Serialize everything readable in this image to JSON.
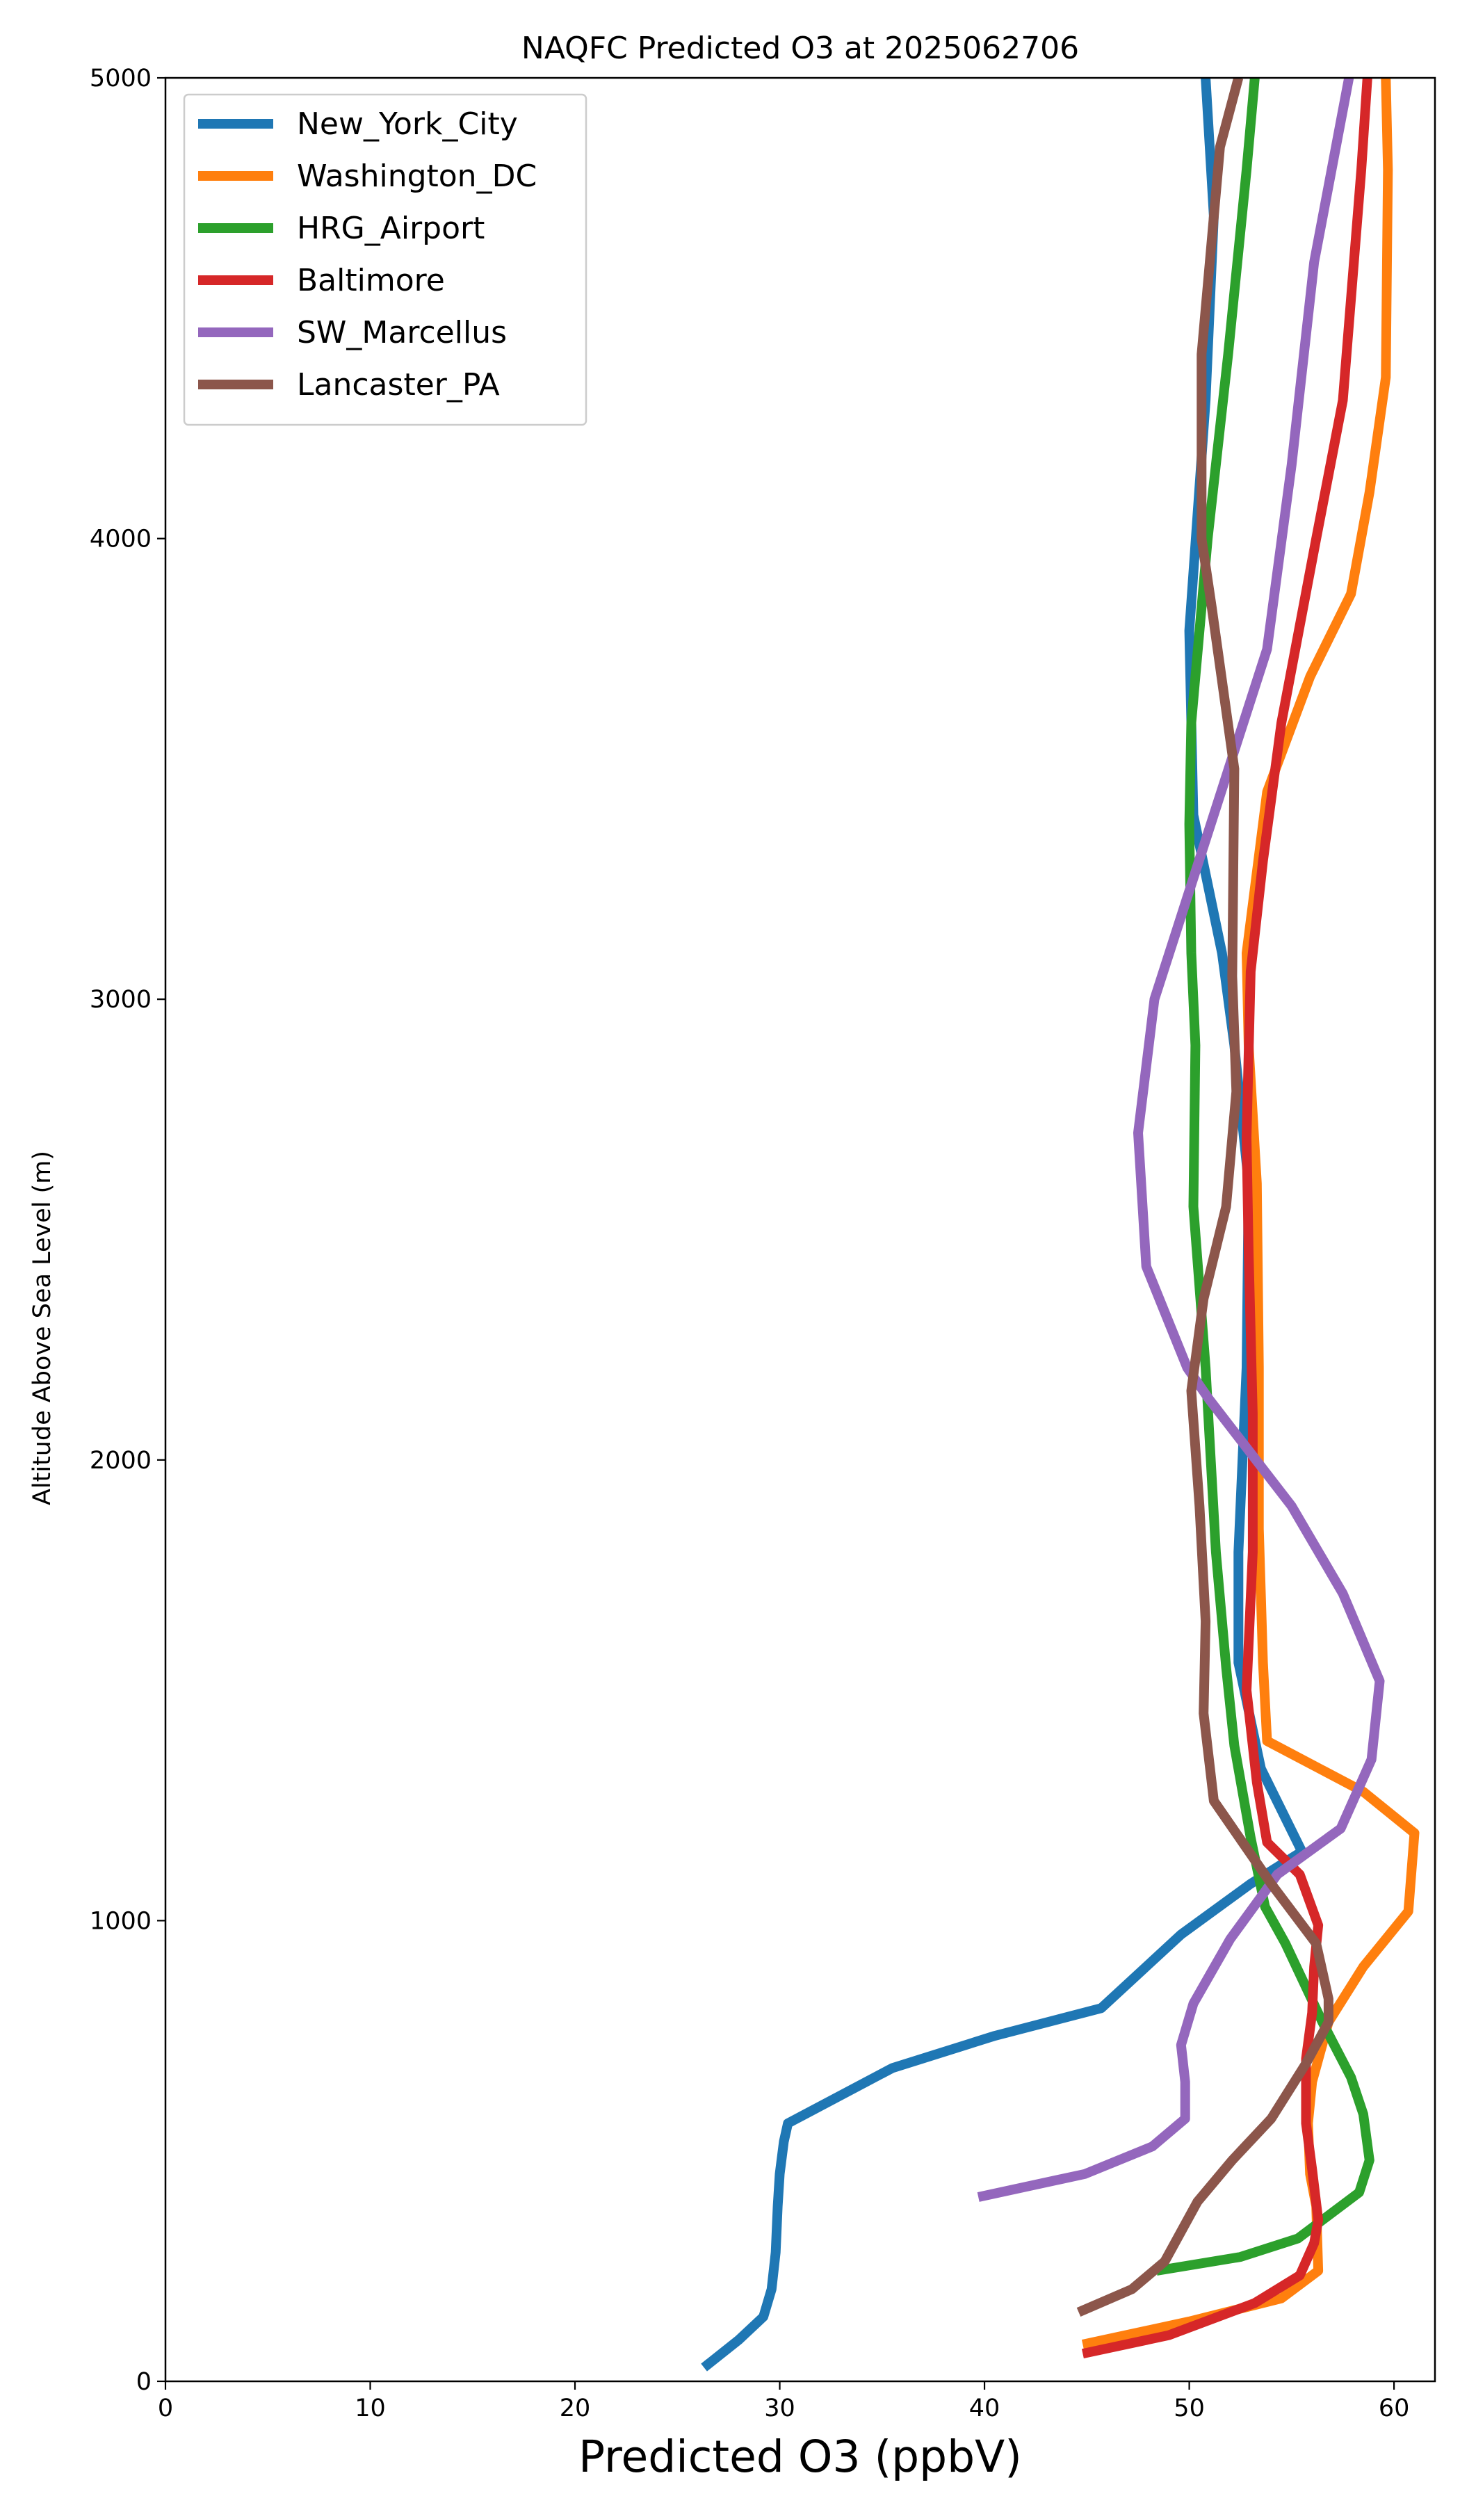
{
  "chart_data": {
    "type": "line",
    "title": "NAQFC Predicted O3 at 2025062706",
    "xlabel": "Predicted O3 (ppbV)",
    "ylabel": "Altitude Above Sea Level (m)",
    "xlim": [
      0,
      62
    ],
    "ylim": [
      0,
      5000
    ],
    "xticks": [
      0,
      10,
      20,
      30,
      40,
      50,
      60
    ],
    "yticks": [
      0,
      1000,
      2000,
      3000,
      4000,
      5000
    ],
    "grid": false,
    "legend_position": "top-left",
    "series": [
      {
        "name": "New_York_City",
        "color": "#1f77b4",
        "points": [
          [
            26.3,
            30
          ],
          [
            28,
            90
          ],
          [
            29.2,
            140
          ],
          [
            29.6,
            200
          ],
          [
            29.8,
            280
          ],
          [
            29.9,
            380
          ],
          [
            30,
            450
          ],
          [
            30.2,
            520
          ],
          [
            30.4,
            560
          ],
          [
            35.5,
            680
          ],
          [
            40.5,
            750
          ],
          [
            45.7,
            810
          ],
          [
            49.6,
            970
          ],
          [
            53,
            1080
          ],
          [
            55.5,
            1150
          ],
          [
            53.5,
            1330
          ],
          [
            52.4,
            1560
          ],
          [
            52.4,
            1800
          ],
          [
            52.8,
            2200
          ],
          [
            52.9,
            2600
          ],
          [
            52.2,
            2900
          ],
          [
            51.6,
            3100
          ],
          [
            50.2,
            3400
          ],
          [
            50,
            3800
          ],
          [
            50.8,
            4300
          ],
          [
            51.2,
            4700
          ],
          [
            50.8,
            5000
          ]
        ]
      },
      {
        "name": "Washington_DC",
        "color": "#ff7f0e",
        "points": [
          [
            44.8,
            80
          ],
          [
            50,
            130
          ],
          [
            54.5,
            180
          ],
          [
            56.3,
            240
          ],
          [
            56.2,
            380
          ],
          [
            55.9,
            450
          ],
          [
            55.8,
            560
          ],
          [
            56,
            650
          ],
          [
            56.8,
            780
          ],
          [
            58.5,
            900
          ],
          [
            60.7,
            1020
          ],
          [
            61,
            1190
          ],
          [
            58.5,
            1280
          ],
          [
            53.8,
            1390
          ],
          [
            53.6,
            1560
          ],
          [
            53.4,
            1850
          ],
          [
            53.4,
            2200
          ],
          [
            53.3,
            2600
          ],
          [
            52.9,
            2900
          ],
          [
            52.8,
            3100
          ],
          [
            53.8,
            3450
          ],
          [
            55.9,
            3700
          ],
          [
            57.9,
            3880
          ],
          [
            58.8,
            4100
          ],
          [
            59.6,
            4350
          ],
          [
            59.7,
            4800
          ],
          [
            59.6,
            5000
          ]
        ]
      },
      {
        "name": "HRG_Airport",
        "color": "#2ca02c",
        "points": [
          [
            48.4,
            240
          ],
          [
            52.5,
            270
          ],
          [
            55.3,
            310
          ],
          [
            58.3,
            410
          ],
          [
            58.8,
            480
          ],
          [
            58.5,
            580
          ],
          [
            57.9,
            660
          ],
          [
            56.5,
            780
          ],
          [
            54.7,
            950
          ],
          [
            53.7,
            1030
          ],
          [
            53,
            1180
          ],
          [
            52.2,
            1380
          ],
          [
            51.8,
            1550
          ],
          [
            51.3,
            1800
          ],
          [
            50.8,
            2200
          ],
          [
            50.2,
            2550
          ],
          [
            50.3,
            2900
          ],
          [
            50.1,
            3100
          ],
          [
            50,
            3380
          ],
          [
            50.1,
            3600
          ],
          [
            50.9,
            4000
          ],
          [
            51.9,
            4400
          ],
          [
            52.8,
            4800
          ],
          [
            53.2,
            5000
          ]
        ]
      },
      {
        "name": "Baltimore",
        "color": "#d62728",
        "points": [
          [
            44.8,
            60
          ],
          [
            49,
            100
          ],
          [
            53.2,
            170
          ],
          [
            55.4,
            230
          ],
          [
            56.1,
            300
          ],
          [
            56.3,
            350
          ],
          [
            56,
            460
          ],
          [
            55.7,
            560
          ],
          [
            55.7,
            700
          ],
          [
            56,
            800
          ],
          [
            56.1,
            900
          ],
          [
            56.3,
            990
          ],
          [
            55.4,
            1100
          ],
          [
            53.8,
            1170
          ],
          [
            53.3,
            1300
          ],
          [
            52.8,
            1500
          ],
          [
            53.1,
            1800
          ],
          [
            53.1,
            2100
          ],
          [
            52.9,
            2450
          ],
          [
            52.8,
            2700
          ],
          [
            53,
            3060
          ],
          [
            53.6,
            3300
          ],
          [
            54.5,
            3600
          ],
          [
            56.2,
            4000
          ],
          [
            57.5,
            4300
          ],
          [
            58.4,
            4800
          ],
          [
            58.7,
            5000
          ]
        ]
      },
      {
        "name": "SW_Marcellus",
        "color": "#9467bd",
        "points": [
          [
            39.7,
            400
          ],
          [
            44.9,
            450
          ],
          [
            48.2,
            510
          ],
          [
            49.8,
            570
          ],
          [
            49.8,
            650
          ],
          [
            49.6,
            730
          ],
          [
            50.2,
            820
          ],
          [
            52,
            960
          ],
          [
            54.3,
            1100
          ],
          [
            57.4,
            1200
          ],
          [
            58.9,
            1350
          ],
          [
            59.3,
            1520
          ],
          [
            57.5,
            1710
          ],
          [
            55,
            1900
          ],
          [
            51,
            2130
          ],
          [
            49.9,
            2200
          ],
          [
            47.9,
            2420
          ],
          [
            47.5,
            2710
          ],
          [
            48.3,
            3000
          ],
          [
            53.8,
            3760
          ],
          [
            55,
            4160
          ],
          [
            56.1,
            4600
          ],
          [
            57.8,
            5000
          ]
        ]
      },
      {
        "name": "Lancaster_PA",
        "color": "#8c564b",
        "points": [
          [
            44.6,
            150
          ],
          [
            47.2,
            200
          ],
          [
            48.8,
            260
          ],
          [
            50.4,
            390
          ],
          [
            52.1,
            480
          ],
          [
            54,
            570
          ],
          [
            55.7,
            690
          ],
          [
            56.8,
            780
          ],
          [
            56.8,
            830
          ],
          [
            56.2,
            950
          ],
          [
            54,
            1080
          ],
          [
            51.2,
            1260
          ],
          [
            50.7,
            1450
          ],
          [
            50.8,
            1650
          ],
          [
            50.5,
            1900
          ],
          [
            50.1,
            2150
          ],
          [
            50.7,
            2350
          ],
          [
            51.8,
            2550
          ],
          [
            52.3,
            2800
          ],
          [
            52.1,
            3050
          ],
          [
            52.2,
            3500
          ],
          [
            51.1,
            3850
          ],
          [
            50.6,
            4000
          ],
          [
            50.6,
            4400
          ],
          [
            51.5,
            4850
          ],
          [
            52.4,
            5000
          ]
        ]
      }
    ]
  }
}
